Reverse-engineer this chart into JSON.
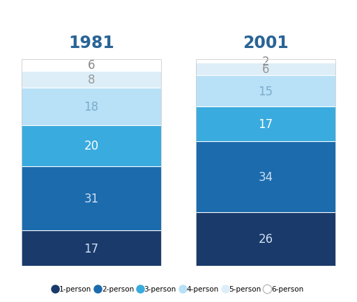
{
  "title_1981": "1981",
  "title_2001": "2001",
  "categories": [
    "1-person",
    "2-person",
    "3-person",
    "4-person",
    "5-person",
    "6-person"
  ],
  "values_1981": [
    17,
    31,
    20,
    18,
    8,
    6
  ],
  "values_2001": [
    26,
    34,
    17,
    15,
    6,
    2
  ],
  "bar_colors": [
    "#1a3a6b",
    "#1b6bad",
    "#3aabde",
    "#b8e0f7",
    "#ddeef8",
    "#ffffff"
  ],
  "label_colors": [
    "#ccddf0",
    "#ccddf0",
    "#ffffff",
    "#7aacca",
    "#999999",
    "#888888"
  ],
  "title_color": "#2a6496",
  "title_fontsize": 17,
  "label_fontsize": 12,
  "background_color": "#ffffff",
  "figsize": [
    5.12,
    4.35
  ],
  "dpi": 100
}
